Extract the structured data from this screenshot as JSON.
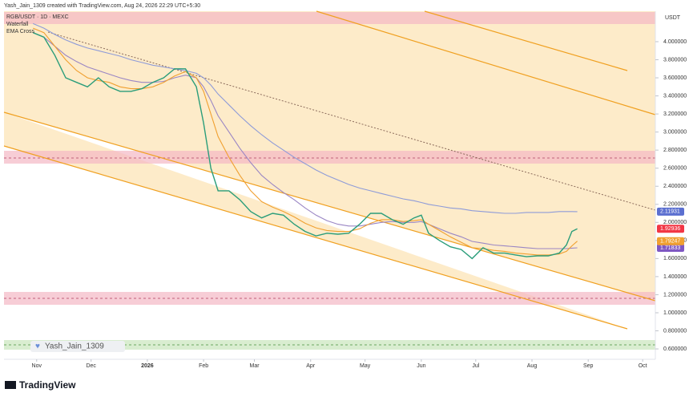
{
  "header": {
    "author_line": "Yash_Jain_1309 created with TradingView.com, Aug 24, 2026 22:29 UTC+5:30"
  },
  "legend": {
    "symbol": "RGB/USDT · 1D · MEXC",
    "indicators": [
      "Waterfall",
      "EMA Cross"
    ]
  },
  "currency": "USDT",
  "watermark": "Yash_Jain_1309",
  "logo": "TradingView",
  "chart_data": {
    "type": "line",
    "x": [
      -2,
      4,
      10,
      16,
      22,
      28,
      34,
      40,
      46,
      52,
      58,
      64,
      70,
      76,
      82,
      88,
      92,
      96,
      100,
      106,
      112,
      118,
      124,
      130,
      136,
      142,
      148,
      154,
      160,
      166,
      172,
      178,
      184,
      190,
      196,
      202,
      208,
      212,
      216,
      222,
      228,
      234,
      240,
      246,
      252,
      258,
      264,
      270,
      276,
      282,
      288,
      292,
      295,
      298
    ],
    "xlim": [
      -18,
      341
    ],
    "xticks": [
      {
        "value": 0,
        "label": "Nov"
      },
      {
        "value": 30,
        "label": "Dec"
      },
      {
        "value": 61,
        "label": "2026"
      },
      {
        "value": 92,
        "label": "Feb"
      },
      {
        "value": 120,
        "label": "Mar"
      },
      {
        "value": 151,
        "label": "Apr"
      },
      {
        "value": 181,
        "label": "May"
      },
      {
        "value": 212,
        "label": "Jun"
      },
      {
        "value": 242,
        "label": "Jul"
      },
      {
        "value": 273,
        "label": "Aug"
      },
      {
        "value": 304,
        "label": "Sep"
      },
      {
        "value": 334,
        "label": "Oct"
      }
    ],
    "ylim": [
      0.485,
      4.337
    ],
    "yticks": [
      {
        "value": 4.0,
        "label": "4.000000"
      },
      {
        "value": 3.8,
        "label": "3.800000"
      },
      {
        "value": 3.6,
        "label": "3.600000"
      },
      {
        "value": 3.4,
        "label": "3.400000"
      },
      {
        "value": 3.2,
        "label": "3.200000"
      },
      {
        "value": 3.0,
        "label": "3.000000"
      },
      {
        "value": 2.8,
        "label": "2.800000"
      },
      {
        "value": 2.6,
        "label": "2.600000"
      },
      {
        "value": 2.4,
        "label": "2.400000"
      },
      {
        "value": 2.2,
        "label": "2.200000"
      },
      {
        "value": 2.0,
        "label": "2.000000"
      },
      {
        "value": 1.8,
        "label": "1.800000"
      },
      {
        "value": 1.6,
        "label": "1.600000"
      },
      {
        "value": 1.4,
        "label": "1.400000"
      },
      {
        "value": 1.2,
        "label": "1.200000"
      },
      {
        "value": 1.0,
        "label": "1.000000"
      },
      {
        "value": 0.8,
        "label": "0.800000"
      },
      {
        "value": 0.6,
        "label": "0.600000"
      }
    ],
    "series": [
      {
        "color": "#8e9bd8",
        "tag_color": "#5b6fd0",
        "values": [
          4.2,
          4.15,
          4.08,
          4.02,
          3.97,
          3.93,
          3.9,
          3.87,
          3.84,
          3.8,
          3.77,
          3.74,
          3.72,
          3.7,
          3.68,
          3.65,
          3.6,
          3.52,
          3.42,
          3.3,
          3.18,
          3.07,
          2.97,
          2.88,
          2.8,
          2.72,
          2.65,
          2.58,
          2.52,
          2.47,
          2.42,
          2.38,
          2.35,
          2.32,
          2.29,
          2.26,
          2.24,
          2.22,
          2.2,
          2.18,
          2.16,
          2.15,
          2.13,
          2.12,
          2.11,
          2.1,
          2.1,
          2.11,
          2.11,
          2.11,
          2.12,
          2.12,
          2.12,
          2.11931
        ]
      },
      {
        "color": "#9a86c4",
        "tag_color": "#7e57c2",
        "values": [
          4.1,
          4.05,
          3.95,
          3.85,
          3.78,
          3.72,
          3.68,
          3.64,
          3.6,
          3.57,
          3.55,
          3.55,
          3.56,
          3.6,
          3.63,
          3.6,
          3.5,
          3.35,
          3.18,
          3.0,
          2.82,
          2.66,
          2.52,
          2.42,
          2.33,
          2.25,
          2.16,
          2.08,
          2.02,
          1.98,
          1.96,
          1.96,
          1.98,
          2.0,
          2.01,
          2.0,
          2.0,
          2.01,
          1.98,
          1.93,
          1.88,
          1.84,
          1.79,
          1.77,
          1.75,
          1.74,
          1.73,
          1.72,
          1.71,
          1.71,
          1.71,
          1.71,
          1.715,
          1.71833
        ]
      },
      {
        "color": "#f0a030",
        "tag_color": "#f0a030",
        "values": [
          4.15,
          4.1,
          3.95,
          3.8,
          3.68,
          3.6,
          3.57,
          3.55,
          3.5,
          3.48,
          3.48,
          3.5,
          3.55,
          3.62,
          3.67,
          3.6,
          3.45,
          3.2,
          2.95,
          2.72,
          2.52,
          2.35,
          2.23,
          2.17,
          2.12,
          2.06,
          1.99,
          1.94,
          1.91,
          1.9,
          1.9,
          1.93,
          1.99,
          2.03,
          2.03,
          2.01,
          2.02,
          2.03,
          1.98,
          1.91,
          1.84,
          1.78,
          1.72,
          1.71,
          1.69,
          1.68,
          1.66,
          1.65,
          1.64,
          1.64,
          1.65,
          1.68,
          1.74,
          1.79247
        ]
      },
      {
        "color": "#2a9d7a",
        "tag_color": "#f23645",
        "values": [
          4.1,
          4.05,
          3.85,
          3.6,
          3.55,
          3.5,
          3.6,
          3.5,
          3.45,
          3.45,
          3.48,
          3.55,
          3.6,
          3.7,
          3.7,
          3.5,
          3.1,
          2.6,
          2.35,
          2.35,
          2.25,
          2.12,
          2.05,
          2.1,
          2.08,
          1.98,
          1.9,
          1.85,
          1.88,
          1.87,
          1.88,
          1.98,
          2.1,
          2.1,
          2.03,
          1.98,
          2.05,
          2.08,
          1.88,
          1.8,
          1.73,
          1.7,
          1.6,
          1.72,
          1.66,
          1.66,
          1.64,
          1.62,
          1.63,
          1.63,
          1.66,
          1.75,
          1.9,
          1.92936
        ]
      }
    ]
  }
}
